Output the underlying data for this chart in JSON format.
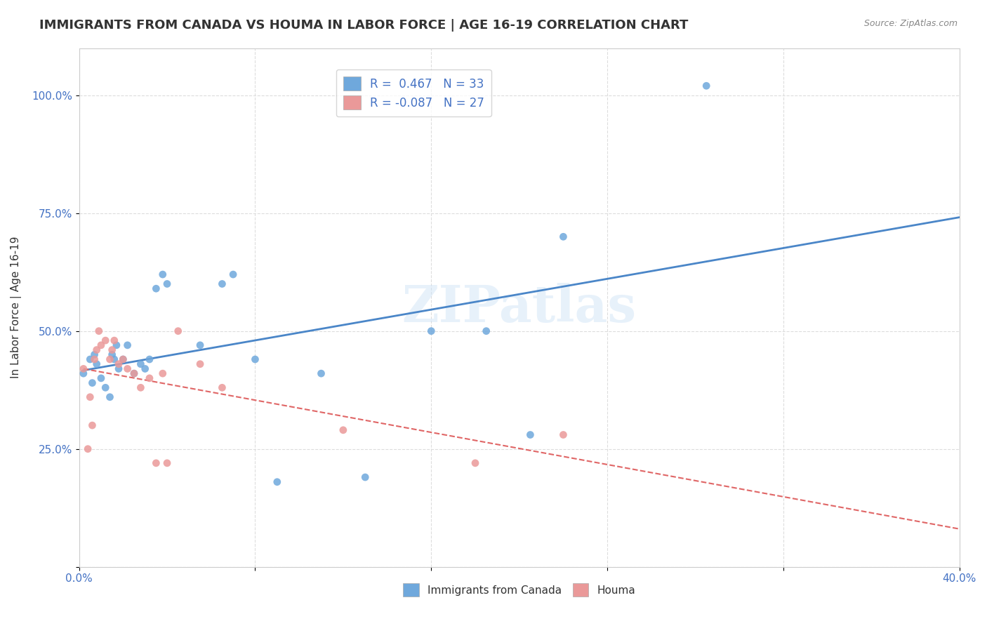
{
  "title": "IMMIGRANTS FROM CANADA VS HOUMA IN LABOR FORCE | AGE 16-19 CORRELATION CHART",
  "source": "Source: ZipAtlas.com",
  "xlabel": "",
  "ylabel": "In Labor Force | Age 16-19",
  "xlim": [
    0.0,
    0.4
  ],
  "ylim": [
    0.0,
    1.1
  ],
  "yticks": [
    0.0,
    0.25,
    0.5,
    0.75,
    1.0
  ],
  "ytick_labels": [
    "",
    "25.0%",
    "50.0%",
    "75.0%",
    "100.0%"
  ],
  "xticks": [
    0.0,
    0.08,
    0.16,
    0.24,
    0.32,
    0.4
  ],
  "xtick_labels": [
    "0.0%",
    "",
    "",
    "",
    "",
    "40.0%"
  ],
  "canada_R": 0.467,
  "canada_N": 33,
  "houma_R": -0.087,
  "houma_N": 27,
  "canada_color": "#6fa8dc",
  "houma_color": "#ea9999",
  "canada_line_color": "#4a86c8",
  "houma_line_color": "#e06666",
  "watermark": "ZIPatlas",
  "canada_x": [
    0.002,
    0.005,
    0.006,
    0.007,
    0.008,
    0.01,
    0.012,
    0.014,
    0.015,
    0.016,
    0.017,
    0.018,
    0.02,
    0.022,
    0.025,
    0.028,
    0.03,
    0.032,
    0.035,
    0.038,
    0.04,
    0.055,
    0.065,
    0.07,
    0.08,
    0.09,
    0.11,
    0.13,
    0.16,
    0.185,
    0.205,
    0.22,
    0.285
  ],
  "canada_y": [
    0.41,
    0.44,
    0.39,
    0.45,
    0.43,
    0.4,
    0.38,
    0.36,
    0.45,
    0.44,
    0.47,
    0.42,
    0.44,
    0.47,
    0.41,
    0.43,
    0.42,
    0.44,
    0.59,
    0.62,
    0.6,
    0.47,
    0.6,
    0.62,
    0.44,
    0.18,
    0.41,
    0.19,
    0.5,
    0.5,
    0.28,
    0.7,
    1.02
  ],
  "houma_x": [
    0.002,
    0.004,
    0.005,
    0.006,
    0.007,
    0.008,
    0.009,
    0.01,
    0.012,
    0.014,
    0.015,
    0.016,
    0.018,
    0.02,
    0.022,
    0.025,
    0.028,
    0.032,
    0.035,
    0.038,
    0.04,
    0.045,
    0.055,
    0.065,
    0.12,
    0.18,
    0.22
  ],
  "houma_y": [
    0.42,
    0.25,
    0.36,
    0.3,
    0.44,
    0.46,
    0.5,
    0.47,
    0.48,
    0.44,
    0.46,
    0.48,
    0.43,
    0.44,
    0.42,
    0.41,
    0.38,
    0.4,
    0.22,
    0.41,
    0.22,
    0.5,
    0.43,
    0.38,
    0.29,
    0.22,
    0.28
  ],
  "background_color": "#ffffff",
  "grid_color": "#dddddd"
}
